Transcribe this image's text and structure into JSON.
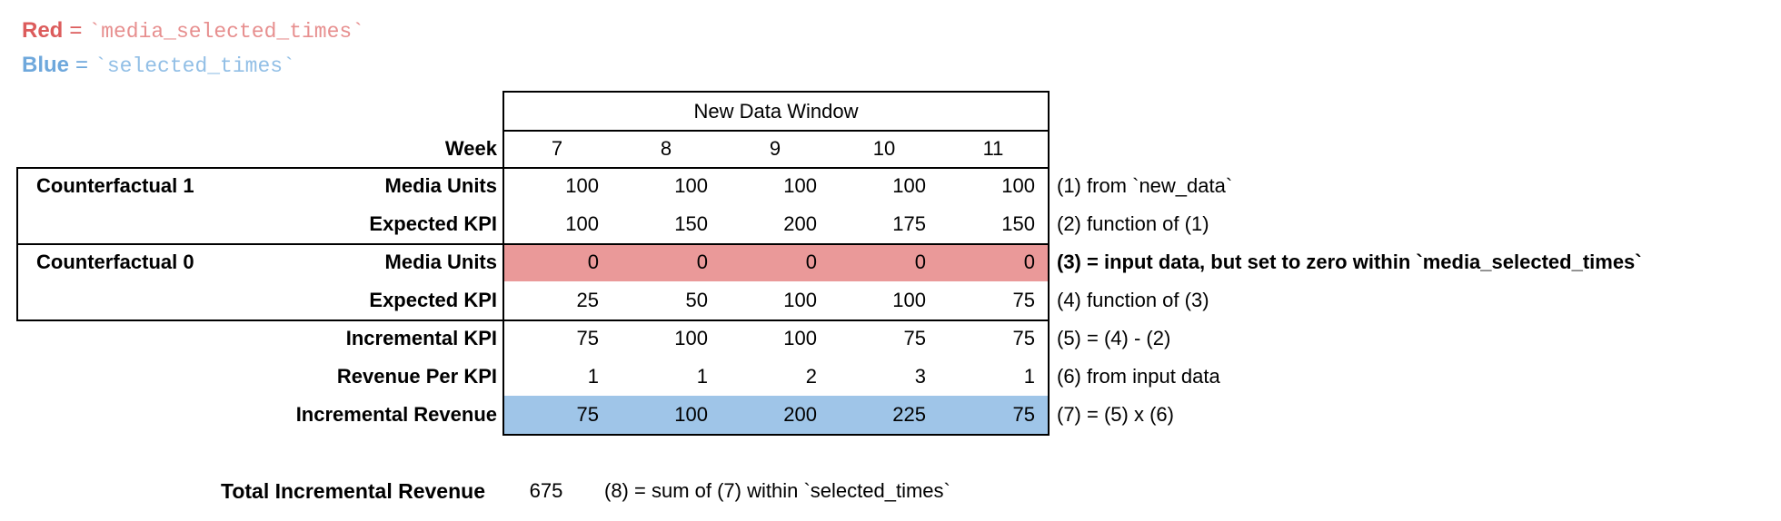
{
  "colors": {
    "red_fill": "#ea9999",
    "blue_fill": "#9fc5e8",
    "red_label_text": "#dc5c5c",
    "red_code_text": "#e78f8f",
    "blue_label_text": "#6fa8dc",
    "blue_code_text": "#92bfe6",
    "border": "#000000"
  },
  "legend": {
    "red": {
      "label": "Red",
      "eq": "=",
      "code": "`media_selected_times`"
    },
    "blue": {
      "label": "Blue",
      "eq": "=",
      "code": "`selected_times`"
    }
  },
  "table": {
    "window_header": "New Data Window",
    "week_label": "Week",
    "weeks": [
      "7",
      "8",
      "9",
      "10",
      "11"
    ],
    "group_labels": {
      "cf1": "Counterfactual 1",
      "cf0": "Counterfactual 0"
    },
    "rows": [
      {
        "label": "Media Units",
        "values": [
          "100",
          "100",
          "100",
          "100",
          "100"
        ],
        "annotation": "(1) from `new_data`",
        "highlight": "none"
      },
      {
        "label": "Expected KPI",
        "values": [
          "100",
          "150",
          "200",
          "175",
          "150"
        ],
        "annotation": "(2) function of (1)",
        "highlight": "none"
      },
      {
        "label": "Media Units",
        "values": [
          "0",
          "0",
          "0",
          "0",
          "0"
        ],
        "annotation": "(3) = input data, but set to zero within `media_selected_times`",
        "highlight": "red"
      },
      {
        "label": "Expected KPI",
        "values": [
          "25",
          "50",
          "100",
          "100",
          "75"
        ],
        "annotation": "(4) function of (3)",
        "highlight": "none"
      },
      {
        "label": "Incremental KPI",
        "values": [
          "75",
          "100",
          "100",
          "75",
          "75"
        ],
        "annotation": "(5) = (4) - (2)",
        "highlight": "none"
      },
      {
        "label": "Revenue Per KPI",
        "values": [
          "1",
          "1",
          "2",
          "3",
          "1"
        ],
        "annotation": "(6) from input data",
        "highlight": "none"
      },
      {
        "label": "Incremental Revenue",
        "values": [
          "75",
          "100",
          "200",
          "225",
          "75"
        ],
        "annotation": "(7) = (5) x (6)",
        "highlight": "blue"
      }
    ]
  },
  "summary": {
    "label": "Total Incremental Revenue",
    "value": "675",
    "annotation": "(8) = sum of (7) within `selected_times`"
  }
}
